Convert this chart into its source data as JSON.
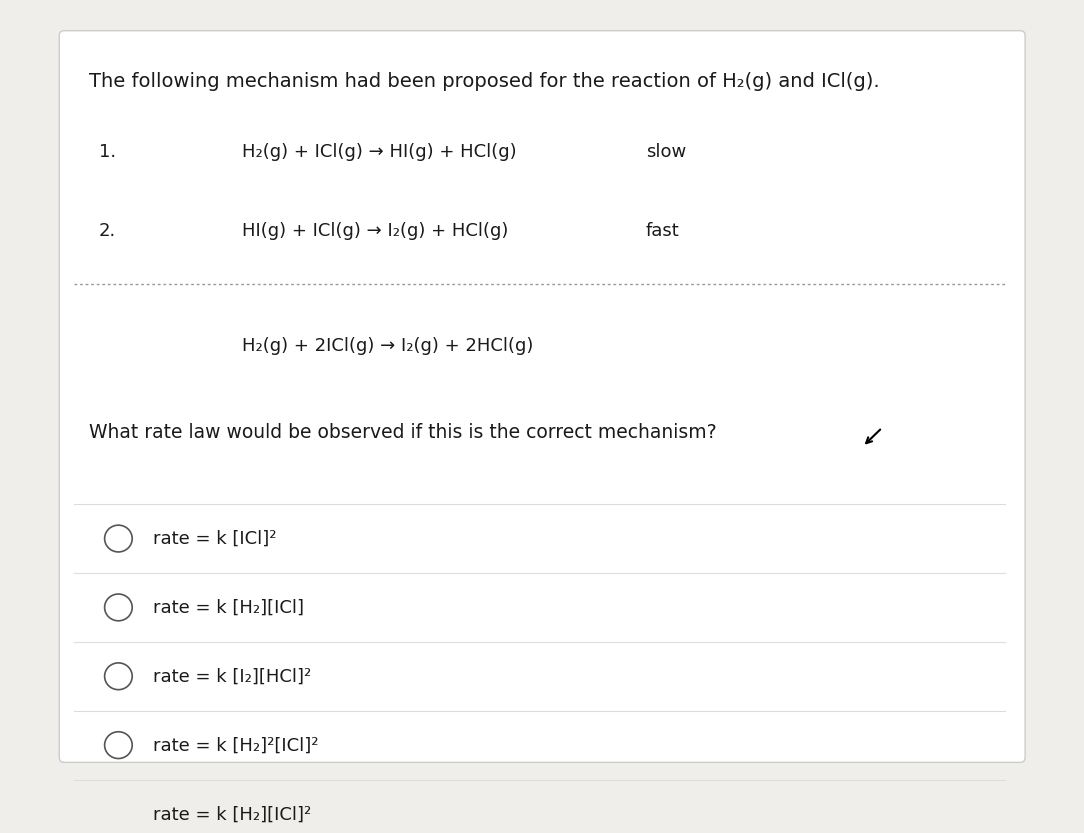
{
  "bg_color": "#f0eeeb",
  "card_color": "#ffffff",
  "card_border_color": "#cccccc",
  "title_text": "The following mechanism had been proposed for the reaction of H₂(g) and ICl(g).",
  "step1_num": "1.",
  "step1_eq": "H₂(g) + ICl(g) → HI(g) + HCl(g)",
  "step1_label": "slow",
  "step2_num": "2.",
  "step2_eq": "HI(g) + ICl(g) → I₂(g) + HCl(g)",
  "step2_label": "fast",
  "overall_eq": "H₂(g) + 2ICl(g) → I₂(g) + 2HCl(g)",
  "question": "What rate law would be observed if this is the correct mechanism?",
  "choices": [
    "rate = k [ICl]²",
    "rate = k [H₂][ICl]",
    "rate = k [I₂][HCl]²",
    "rate = k [H₂]²[ICl]²",
    "rate = k [H₂][ICl]²"
  ],
  "text_color": "#1a1a1a",
  "title_fontsize": 14,
  "body_fontsize": 13,
  "choice_fontsize": 13
}
